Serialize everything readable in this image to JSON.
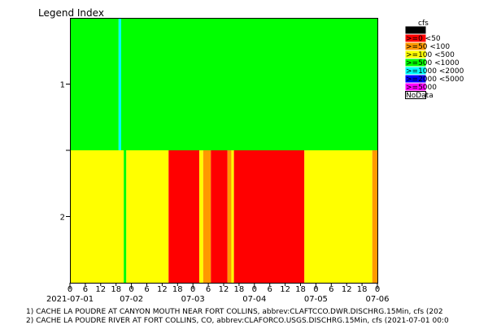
{
  "chart_data": {
    "type": "heatmap",
    "title": "Legend Index",
    "legend_unit": "cfs",
    "legend_position": "right",
    "legend": [
      {
        "label": "<0",
        "color": "#000000"
      },
      {
        "label": ">=0 <50",
        "color": "#ff0000"
      },
      {
        "label": ">=50 <100",
        "color": "#ff9900"
      },
      {
        "label": ">=100 <500",
        "color": "#ffff00"
      },
      {
        "label": ">=500 <1000",
        "color": "#00ff00"
      },
      {
        "label": ">=1000 <2000",
        "color": "#00ffff"
      },
      {
        "label": ">=2000 <5000",
        "color": "#0000ff"
      },
      {
        "label": ">=5000",
        "color": "#ff00ff"
      },
      {
        "label": "NoData",
        "color": "#ffffff"
      }
    ],
    "x_range_hours": [
      0,
      120
    ],
    "x_start_label": "2021-07-01",
    "hour_ticks": [
      0,
      6,
      12,
      18,
      24,
      30,
      36,
      42,
      48,
      54,
      60,
      66,
      72,
      78,
      84,
      90,
      96,
      102,
      108,
      114,
      120
    ],
    "hour_tick_labels": [
      "0",
      "6",
      "12",
      "18",
      "0",
      "6",
      "12",
      "18",
      "0",
      "6",
      "12",
      "18",
      "0",
      "6",
      "12",
      "18",
      "0",
      "6",
      "12",
      "18",
      "0"
    ],
    "date_labels": [
      {
        "hour": 24,
        "label": "07-02"
      },
      {
        "hour": 48,
        "label": "07-03"
      },
      {
        "hour": 72,
        "label": "07-04"
      },
      {
        "hour": 96,
        "label": "07-05"
      },
      {
        "hour": 120,
        "label": "07-06"
      }
    ],
    "rows": [
      {
        "index_label": "1",
        "segments": [
          {
            "start": 0,
            "end": 19,
            "color": "#00ff00"
          },
          {
            "start": 19,
            "end": 20,
            "color": "#00ffff"
          },
          {
            "start": 20,
            "end": 120,
            "color": "#00ff00"
          }
        ]
      },
      {
        "index_label": "2",
        "segments": [
          {
            "start": 0,
            "end": 21,
            "color": "#ffff00"
          },
          {
            "start": 21,
            "end": 22,
            "color": "#00ff00"
          },
          {
            "start": 22,
            "end": 38.5,
            "color": "#ffff00"
          },
          {
            "start": 38.5,
            "end": 50.5,
            "color": "#ff0000"
          },
          {
            "start": 50.5,
            "end": 52,
            "color": "#ffff00"
          },
          {
            "start": 52,
            "end": 55,
            "color": "#ff9900"
          },
          {
            "start": 55,
            "end": 61.5,
            "color": "#ff0000"
          },
          {
            "start": 61.5,
            "end": 63,
            "color": "#ff9900"
          },
          {
            "start": 63,
            "end": 64,
            "color": "#ffff00"
          },
          {
            "start": 64,
            "end": 91.5,
            "color": "#ff0000"
          },
          {
            "start": 91.5,
            "end": 118,
            "color": "#ffff00"
          },
          {
            "start": 118,
            "end": 120,
            "color": "#ff9900"
          }
        ]
      }
    ]
  },
  "footnotes": [
    "1) CACHE LA POUDRE AT CANYON MOUTH NEAR FORT COLLINS, abbrev:CLAFTCCO.DWR.DISCHRG.15Min, cfs (202",
    "2) CACHE LA POUDRE RIVER AT FORT COLLINS, CO, abbrev:CLAFORCO.USGS.DISCHRG.15Min, cfs (2021-07-01 00:0"
  ]
}
